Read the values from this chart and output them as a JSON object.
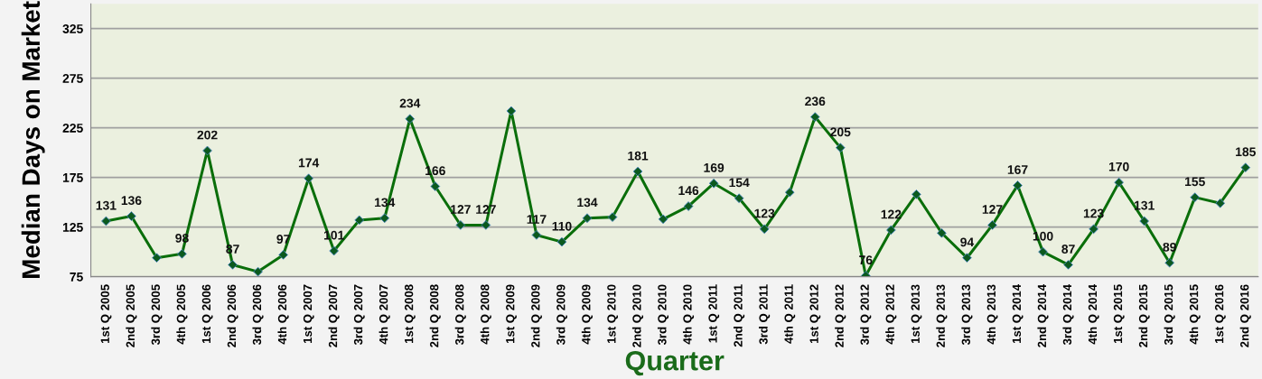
{
  "chart_data": {
    "type": "line",
    "xlabel": "Quarter",
    "ylabel": "Median Days on Market",
    "categories": [
      "1st Q 2005",
      "2nd Q 2005",
      "3rd Q 2005",
      "4th Q 2005",
      "1st Q 2006",
      "2nd Q 2006",
      "3rd Q 2006",
      "4th Q 2006",
      "1st Q 2007",
      "2nd Q 2007",
      "3rd Q 2007",
      "4th Q 2007",
      "1st Q 2008",
      "2nd Q 2008",
      "3rd Q 2008",
      "4th Q 2008",
      "1st Q 2009",
      "2nd Q 2009",
      "3rd Q 2009",
      "4th Q 2009",
      "1st Q 2010",
      "2nd Q 2010",
      "3rd Q 2010",
      "4th Q 2010",
      "1st Q 2011",
      "2nd Q 2011",
      "3rd Q 2011",
      "4th Q 2011",
      "1st Q 2012",
      "2nd Q 2012",
      "3rd Q 2012",
      "4th Q 2012",
      "1st Q 2013",
      "2nd Q 2013",
      "3rd Q 2013",
      "4th Q 2013",
      "1st Q 2014",
      "2nd Q 2014",
      "3rd Q 2014",
      "4th Q 2014",
      "1st Q 2015",
      "2nd Q 2015",
      "3rd Q 2015",
      "4th Q 2015",
      "1st Q 2016",
      "2nd Q 2016"
    ],
    "series": [
      {
        "color": "#0a6e0a",
        "values": [
          131,
          136,
          94,
          98,
          202,
          87,
          80,
          97,
          174,
          101,
          132,
          134,
          234,
          166,
          127,
          127,
          242,
          117,
          110,
          134,
          135,
          181,
          133,
          146,
          169,
          154,
          123,
          160,
          236,
          205,
          76,
          122,
          158,
          119,
          94,
          127,
          167,
          100,
          87,
          123,
          170,
          131,
          89,
          155,
          149,
          185
        ],
        "value_labels": [
          "131",
          "136",
          null,
          "98",
          "202",
          "87",
          null,
          "97",
          "174",
          "101",
          null,
          "134",
          "234",
          "166",
          "127",
          "127",
          null,
          "117",
          "110",
          "134",
          null,
          "181",
          null,
          "146",
          "169",
          "154",
          "123",
          null,
          "236",
          "205",
          "76",
          "122",
          null,
          null,
          "94",
          "127",
          "167",
          "100",
          "87",
          "123",
          "170",
          "131",
          "89",
          "155",
          null,
          "185"
        ]
      }
    ],
    "ylim": [
      75,
      350
    ],
    "yticks": [
      75,
      125,
      175,
      225,
      275,
      325
    ],
    "grid": "y",
    "marker": "diamond",
    "line_style": "solid"
  }
}
